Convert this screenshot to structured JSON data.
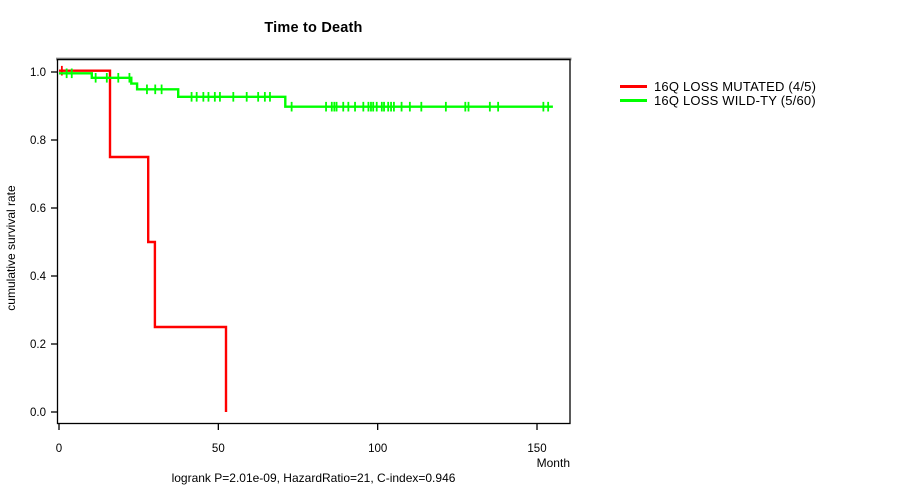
{
  "chart_data": {
    "type": "line",
    "subtype": "kaplan-meier-step",
    "title": "Time to Death",
    "xlabel": "Month",
    "ylabel": "cumulative survival rate",
    "footnote": "logrank P=2.01e-09, HazardRatio=21, C-index=0.946",
    "xlim": [
      0,
      160
    ],
    "ylim": [
      0.0,
      1.0
    ],
    "xticks": [
      0,
      50,
      100,
      150
    ],
    "xtick_labels": [
      "0",
      "50",
      "100",
      "150"
    ],
    "yticks": [
      0.0,
      0.2,
      0.4,
      0.6,
      0.8,
      1.0
    ],
    "ytick_labels": [
      "0.0",
      "0.2",
      "0.4",
      "0.6",
      "0.8",
      "1.0"
    ],
    "grid": false,
    "legend_position": "right-outside",
    "series": [
      {
        "name": "16Q LOSS MUTATED (4/5)",
        "color": "#ff0000",
        "events": 4,
        "n": 5,
        "steps": [
          [
            0,
            1.0
          ],
          [
            16,
            1.0
          ],
          [
            16,
            0.75
          ],
          [
            28,
            0.75
          ],
          [
            28,
            0.5
          ],
          [
            30.1,
            0.5
          ],
          [
            30.1,
            0.25
          ],
          [
            52.4,
            0.25
          ],
          [
            52.4,
            0.0
          ]
        ],
        "censor_marks": [
          [
            0.9,
            1.0
          ]
        ]
      },
      {
        "name": "16Q LOSS WILD-TY (5/60)",
        "color": "#00ff00",
        "events": 5,
        "n": 60,
        "steps": [
          [
            0,
            1.0
          ],
          [
            10.3,
            1.0
          ],
          [
            10.3,
            0.983
          ],
          [
            22.7,
            0.983
          ],
          [
            22.7,
            0.966
          ],
          [
            24.5,
            0.966
          ],
          [
            24.5,
            0.949
          ],
          [
            37.4,
            0.949
          ],
          [
            37.4,
            0.927
          ],
          [
            71,
            0.927
          ],
          [
            71,
            0.898
          ],
          [
            155,
            0.898
          ]
        ],
        "censor_marks": [
          [
            2.4,
            1.0
          ],
          [
            4.0,
            1.0
          ],
          [
            11.5,
            0.983
          ],
          [
            15.0,
            0.983
          ],
          [
            18.6,
            0.983
          ],
          [
            22.1,
            0.983
          ],
          [
            27.6,
            0.949
          ],
          [
            30.2,
            0.949
          ],
          [
            32.2,
            0.949
          ],
          [
            41.6,
            0.927
          ],
          [
            43.2,
            0.927
          ],
          [
            45.3,
            0.927
          ],
          [
            46.9,
            0.927
          ],
          [
            48.9,
            0.927
          ],
          [
            50.5,
            0.927
          ],
          [
            54.7,
            0.927
          ],
          [
            58.9,
            0.927
          ],
          [
            62.5,
            0.927
          ],
          [
            64.6,
            0.927
          ],
          [
            66.2,
            0.927
          ],
          [
            73,
            0.898
          ],
          [
            83.8,
            0.898
          ],
          [
            85.6,
            0.898
          ],
          [
            86.4,
            0.898
          ],
          [
            87.1,
            0.898
          ],
          [
            89.2,
            0.898
          ],
          [
            90.8,
            0.898
          ],
          [
            92.9,
            0.898
          ],
          [
            95.5,
            0.898
          ],
          [
            97.1,
            0.898
          ],
          [
            97.9,
            0.898
          ],
          [
            98.6,
            0.898
          ],
          [
            99.7,
            0.898
          ],
          [
            101.3,
            0.898
          ],
          [
            102.0,
            0.898
          ],
          [
            103.3,
            0.898
          ],
          [
            104.2,
            0.898
          ],
          [
            105.1,
            0.898
          ],
          [
            107.5,
            0.898
          ],
          [
            110.1,
            0.898
          ],
          [
            113.7,
            0.898
          ],
          [
            121.4,
            0.898
          ],
          [
            127.5,
            0.898
          ],
          [
            128.5,
            0.898
          ],
          [
            135.2,
            0.898
          ],
          [
            137.8,
            0.898
          ],
          [
            152.0,
            0.898
          ],
          [
            153.5,
            0.898
          ]
        ]
      }
    ],
    "colors": {
      "axis": "#000000",
      "box_top_edge": "#909090",
      "background": "#ffffff"
    }
  }
}
